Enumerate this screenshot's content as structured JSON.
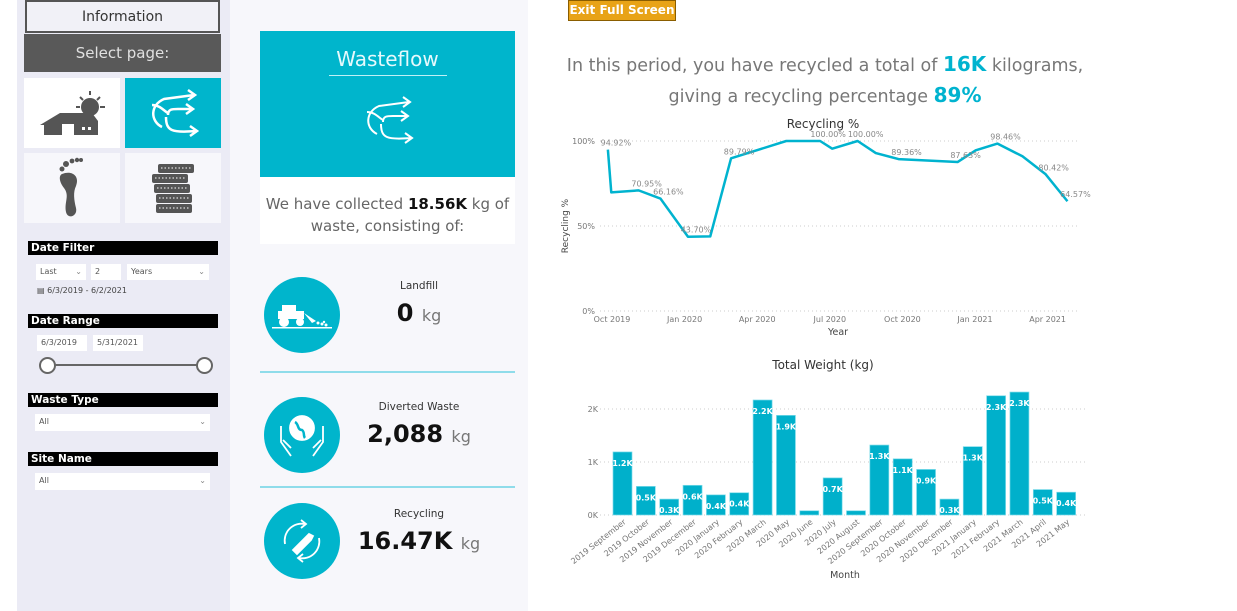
{
  "nav": {
    "info_label": "Information",
    "select_page_label": "Select page:",
    "tiles": [
      {
        "icon": "house-solar-icon",
        "active": false
      },
      {
        "icon": "wasteflow-arrows-icon",
        "active": true
      },
      {
        "icon": "footprint-icon",
        "active": false
      },
      {
        "icon": "coins-stack-icon",
        "active": false
      }
    ]
  },
  "filters": {
    "date_filter": {
      "title": "Date Filter",
      "mode": "Last",
      "count": "2",
      "unit": "Years",
      "range_text": "6/3/2019 - 6/2/2021"
    },
    "date_range": {
      "title": "Date Range",
      "start": "6/3/2019",
      "end": "5/31/2021",
      "slider_start_fraction": 0,
      "slider_end_fraction": 1
    },
    "waste_type": {
      "title": "Waste Type",
      "value": "All"
    },
    "site_name": {
      "title": "Site Name",
      "value": "All"
    }
  },
  "summary": {
    "card_title": "Wasteflow",
    "collected_prefix": "We have collected ",
    "collected_value": "18.56K",
    "collected_suffix": " kg of waste, consisting of:"
  },
  "kpis": [
    {
      "label": "Landfill",
      "value": "0",
      "unit": "kg",
      "icon": "bulldozer-icon"
    },
    {
      "label": "Diverted Waste",
      "value": "2,088",
      "unit": "kg",
      "icon": "globe-hands-icon"
    },
    {
      "label": "Recycling",
      "value": "16.47K",
      "unit": "kg",
      "icon": "recycle-bottle-icon"
    }
  ],
  "toolbar": {
    "exit_label": "Exit Full Screen"
  },
  "headline": {
    "p1": "In this period, you have recycled a total of ",
    "total": "16K",
    "p2": " kilograms, giving a recycling percentage ",
    "percent": "89%"
  },
  "colors": {
    "accent": "#00b5cc",
    "exit_button": "#e8a317"
  },
  "chart_data": [
    {
      "type": "line",
      "title": "Recycling %",
      "xlabel": "Year",
      "ylabel": "Recycling %",
      "x_unit": "months since Oct 2019",
      "x_ticks": [
        {
          "v": 0,
          "label": "Oct 2019"
        },
        {
          "v": 3,
          "label": "Jan 2020"
        },
        {
          "v": 6,
          "label": "Apr 2020"
        },
        {
          "v": 9,
          "label": "Jul 2020"
        },
        {
          "v": 12,
          "label": "Oct 2020"
        },
        {
          "v": 15,
          "label": "Jan 2021"
        },
        {
          "v": 18,
          "label": "Apr 2021"
        }
      ],
      "y_ticks": [
        {
          "v": 0,
          "label": "0%"
        },
        {
          "v": 50,
          "label": "50%"
        },
        {
          "v": 100,
          "label": "100%"
        }
      ],
      "ylim": [
        0,
        100
      ],
      "points": [
        {
          "x": -0.17,
          "y": 94.92,
          "label": "94.92%"
        },
        {
          "x": -0.03,
          "y": 69.8
        },
        {
          "x": 1.1,
          "y": 70.95,
          "label": "70.95%"
        },
        {
          "x": 2.0,
          "y": 66.16,
          "label": "66.16%"
        },
        {
          "x": 3.14,
          "y": 43.7,
          "label": "43.70%"
        },
        {
          "x": 4.06,
          "y": 43.9
        },
        {
          "x": 4.92,
          "y": 89.79,
          "label": "89.79%"
        },
        {
          "x": 7.2,
          "y": 100
        },
        {
          "x": 8.6,
          "y": 100,
          "label": "100.00%"
        },
        {
          "x": 9.1,
          "y": 95.5
        },
        {
          "x": 10.15,
          "y": 100,
          "label": "100.00%"
        },
        {
          "x": 10.9,
          "y": 92.9
        },
        {
          "x": 11.84,
          "y": 89.36,
          "label": "89.36%"
        },
        {
          "x": 14.28,
          "y": 87.63,
          "label": "87.63%"
        },
        {
          "x": 15.03,
          "y": 94.5
        },
        {
          "x": 15.93,
          "y": 98.46,
          "label": "98.46%"
        },
        {
          "x": 16.96,
          "y": 91
        },
        {
          "x": 17.92,
          "y": 80.42,
          "label": "80.42%"
        },
        {
          "x": 18.82,
          "y": 64.57,
          "label": "64.57%"
        }
      ]
    },
    {
      "type": "bar",
      "title": "Total Weight (kg)",
      "xlabel": "Month",
      "ylabel": "",
      "y_ticks": [
        {
          "v": 0,
          "label": "0K"
        },
        {
          "v": 1000,
          "label": "1K"
        },
        {
          "v": 2000,
          "label": "2K"
        }
      ],
      "categories": [
        "2019 September",
        "2019 October",
        "2019 November",
        "2019 December",
        "2020 January",
        "2020 February",
        "2020 March",
        "2020 May",
        "2020 June",
        "2020 July",
        "2020 August",
        "2020 September",
        "2020 October",
        "2020 November",
        "2020 December",
        "2021 January",
        "2021 February",
        "2021 March",
        "2021 April",
        "2021 May"
      ],
      "values": [
        1190,
        540,
        300,
        560,
        380,
        420,
        2170,
        1880,
        80,
        700,
        80,
        1320,
        1060,
        860,
        300,
        1290,
        2250,
        2320,
        480,
        430
      ],
      "labels": [
        "1.2K",
        "0.5K",
        "0.3K",
        "0.6K",
        "0.4K",
        "0.4K",
        "2.2K",
        "1.9K",
        "",
        "0.7K",
        "",
        "1.3K",
        "1.1K",
        "0.9K",
        "0.3K",
        "1.3K",
        "2.3K",
        "2.3K",
        "0.5K",
        "0.4K"
      ]
    }
  ]
}
